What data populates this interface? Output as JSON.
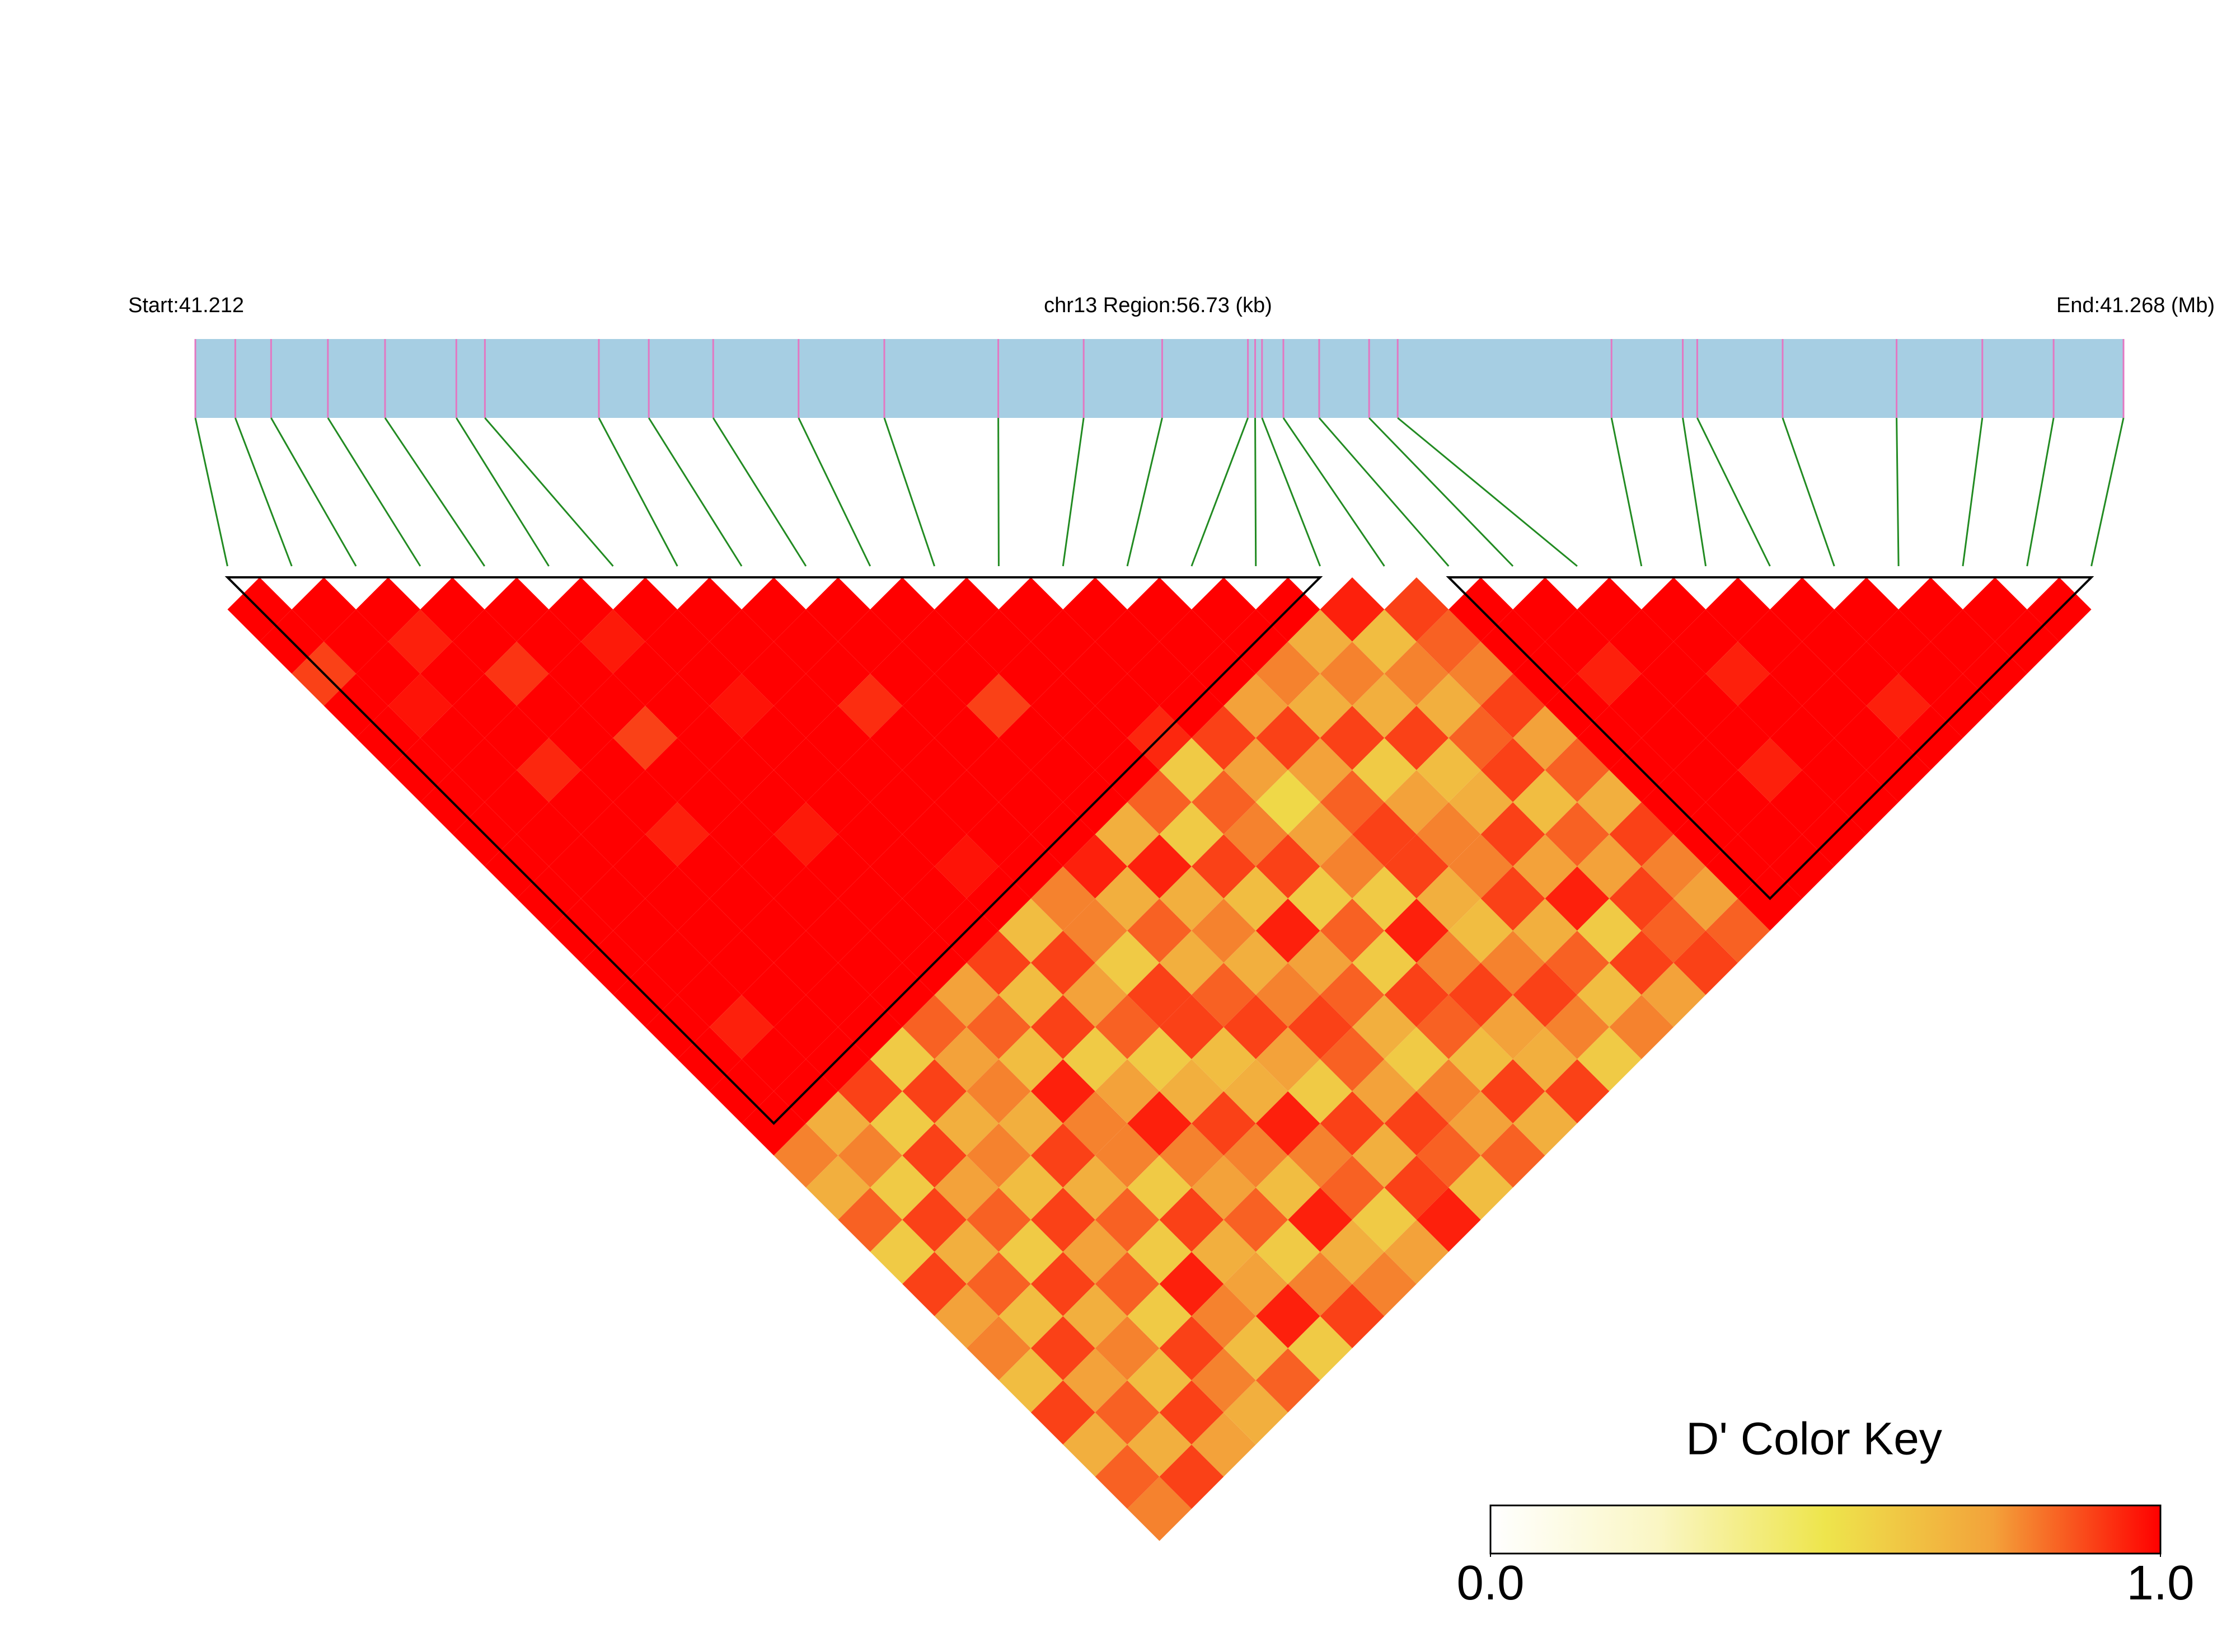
{
  "chart_data": {
    "type": "heatmap",
    "title": "chr13 Region:56.73 (kb)",
    "start_label": "Start:41.212",
    "end_label": "End:41.268 (Mb)",
    "xlim": [
      41.212,
      41.268
    ],
    "snp_positions": [
      41.212,
      41.21316,
      41.2142,
      41.21585,
      41.21751,
      41.21958,
      41.22041,
      41.22372,
      41.22517,
      41.22704,
      41.22952,
      41.23201,
      41.23532,
      41.2378,
      41.24008,
      41.24257,
      41.24278,
      41.24298,
      41.2436,
      41.24464,
      41.24609,
      41.24692,
      41.25313,
      41.2552,
      41.25562,
      41.2581,
      41.26141,
      41.2639,
      41.26597,
      41.268
    ],
    "ld": [
      [
        1
      ],
      [
        1,
        1
      ],
      [
        0.9,
        1,
        1
      ],
      [
        1,
        1,
        0.95,
        1
      ],
      [
        1,
        0.97,
        1,
        1,
        1
      ],
      [
        1,
        1,
        1,
        0.92,
        1,
        1
      ],
      [
        1,
        1,
        1,
        1,
        1,
        0.96,
        1
      ],
      [
        1,
        1,
        0.94,
        1,
        1,
        1,
        1,
        1
      ],
      [
        1,
        1,
        1,
        1,
        0.9,
        1,
        1,
        1,
        1
      ],
      [
        1,
        1,
        1,
        1,
        1,
        1,
        0.97,
        1,
        1,
        1
      ],
      [
        1,
        1,
        1,
        0.95,
        1,
        1,
        1,
        1,
        1,
        1,
        1
      ],
      [
        1,
        1,
        1,
        1,
        1,
        1,
        1,
        1,
        0.93,
        1,
        1,
        1
      ],
      [
        1,
        1,
        1,
        1,
        1,
        0.96,
        1,
        1,
        1,
        1,
        1,
        1,
        1
      ],
      [
        1,
        1,
        1,
        1,
        1,
        1,
        1,
        1,
        1,
        1,
        0.9,
        1,
        1,
        1
      ],
      [
        1,
        0.95,
        1,
        1,
        1,
        1,
        1,
        1,
        1,
        1,
        1,
        1,
        1,
        1,
        1
      ],
      [
        1,
        1,
        1,
        1,
        1,
        1,
        1,
        0.97,
        1,
        1,
        1,
        1,
        1,
        1,
        1,
        1
      ],
      [
        1,
        1,
        1,
        1,
        1,
        1,
        1,
        1,
        1,
        1,
        1,
        1,
        0.94,
        1,
        1,
        1,
        1
      ],
      [
        0.8,
        0.7,
        0.9,
        0.6,
        0.85,
        0.75,
        0.9,
        0.65,
        0.8,
        0.95,
        0.7,
        0.85,
        0.6,
        0.9,
        0.75,
        0.8,
        0.7,
        0.95
      ],
      [
        0.7,
        0.8,
        0.6,
        0.9,
        0.75,
        0.85,
        0.65,
        0.9,
        0.8,
        0.7,
        0.95,
        0.6,
        0.85,
        0.75,
        0.9,
        0.7,
        0.8,
        0.65,
        0.9
      ],
      [
        0.85,
        0.6,
        0.9,
        0.7,
        0.8,
        0.65,
        0.9,
        0.75,
        0.6,
        0.85,
        0.7,
        0.9,
        0.8,
        0.55,
        0.75,
        0.9,
        0.7,
        0.8,
        0.85,
        1
      ],
      [
        0.6,
        0.9,
        0.75,
        0.8,
        0.7,
        0.95,
        0.6,
        0.85,
        0.9,
        0.7,
        0.8,
        0.65,
        0.9,
        0.75,
        0.85,
        0.6,
        0.9,
        0.7,
        0.8,
        1,
        1
      ],
      [
        0.9,
        0.7,
        0.85,
        0.65,
        0.9,
        0.8,
        0.75,
        0.6,
        0.9,
        0.85,
        0.7,
        0.95,
        0.6,
        0.8,
        0.9,
        0.75,
        0.65,
        0.85,
        0.9,
        1,
        1,
        1
      ],
      [
        0.75,
        0.85,
        0.6,
        0.9,
        0.7,
        0.8,
        0.95,
        0.7,
        0.65,
        0.9,
        0.8,
        0.75,
        0.85,
        0.6,
        0.9,
        0.8,
        0.7,
        0.9,
        0.75,
        1,
        0.95,
        1,
        1
      ],
      [
        0.8,
        0.65,
        0.9,
        0.75,
        0.85,
        0.6,
        0.8,
        0.9,
        0.7,
        0.75,
        0.9,
        0.85,
        0.6,
        0.95,
        0.7,
        0.8,
        0.9,
        0.65,
        0.85,
        1,
        1,
        1,
        1,
        1
      ],
      [
        0.65,
        0.9,
        0.7,
        0.85,
        0.6,
        0.9,
        0.75,
        0.8,
        0.95,
        0.6,
        0.85,
        0.7,
        0.9,
        0.8,
        0.65,
        0.9,
        0.75,
        0.85,
        0.7,
        1,
        1,
        1,
        0.95,
        1,
        1
      ],
      [
        0.9,
        0.75,
        0.8,
        0.6,
        0.95,
        0.7,
        0.85,
        0.65,
        0.8,
        0.9,
        0.75,
        0.6,
        0.85,
        0.9,
        0.8,
        0.7,
        0.95,
        0.75,
        0.9,
        1,
        1,
        1,
        1,
        1,
        1,
        1
      ],
      [
        0.7,
        0.85,
        0.65,
        0.9,
        0.8,
        0.75,
        0.6,
        0.95,
        0.85,
        0.7,
        0.9,
        0.8,
        0.65,
        0.75,
        0.9,
        0.85,
        0.6,
        0.9,
        0.8,
        1,
        1,
        0.95,
        1,
        1,
        1,
        1,
        1
      ],
      [
        0.85,
        0.7,
        0.9,
        0.8,
        0.65,
        0.95,
        0.8,
        0.7,
        0.6,
        0.9,
        0.85,
        0.75,
        0.9,
        0.7,
        0.8,
        0.65,
        0.9,
        0.85,
        0.75,
        1,
        1,
        1,
        1,
        1,
        0.95,
        1,
        1,
        1
      ],
      [
        0.8,
        0.9,
        0.75,
        0.7,
        0.85,
        0.6,
        0.9,
        0.8,
        0.75,
        0.95,
        0.65,
        0.85,
        0.7,
        0.9,
        0.6,
        0.8,
        0.75,
        0.9,
        0.85,
        1,
        1,
        1,
        1,
        1,
        1,
        1,
        1,
        1,
        1
      ]
    ],
    "blocks": [
      [
        0,
        17
      ],
      [
        19,
        29
      ]
    ],
    "colors": [
      "#ffffff",
      "#faf6c4",
      "#eee54c",
      "#f3a23a",
      "#ff0000"
    ],
    "color_key": {
      "title": "D' Color Key",
      "lim": [
        0,
        1
      ],
      "ticks": [
        {
          "value": 0,
          "label": "0.0"
        },
        {
          "value": 1,
          "label": "1.0"
        }
      ]
    }
  }
}
